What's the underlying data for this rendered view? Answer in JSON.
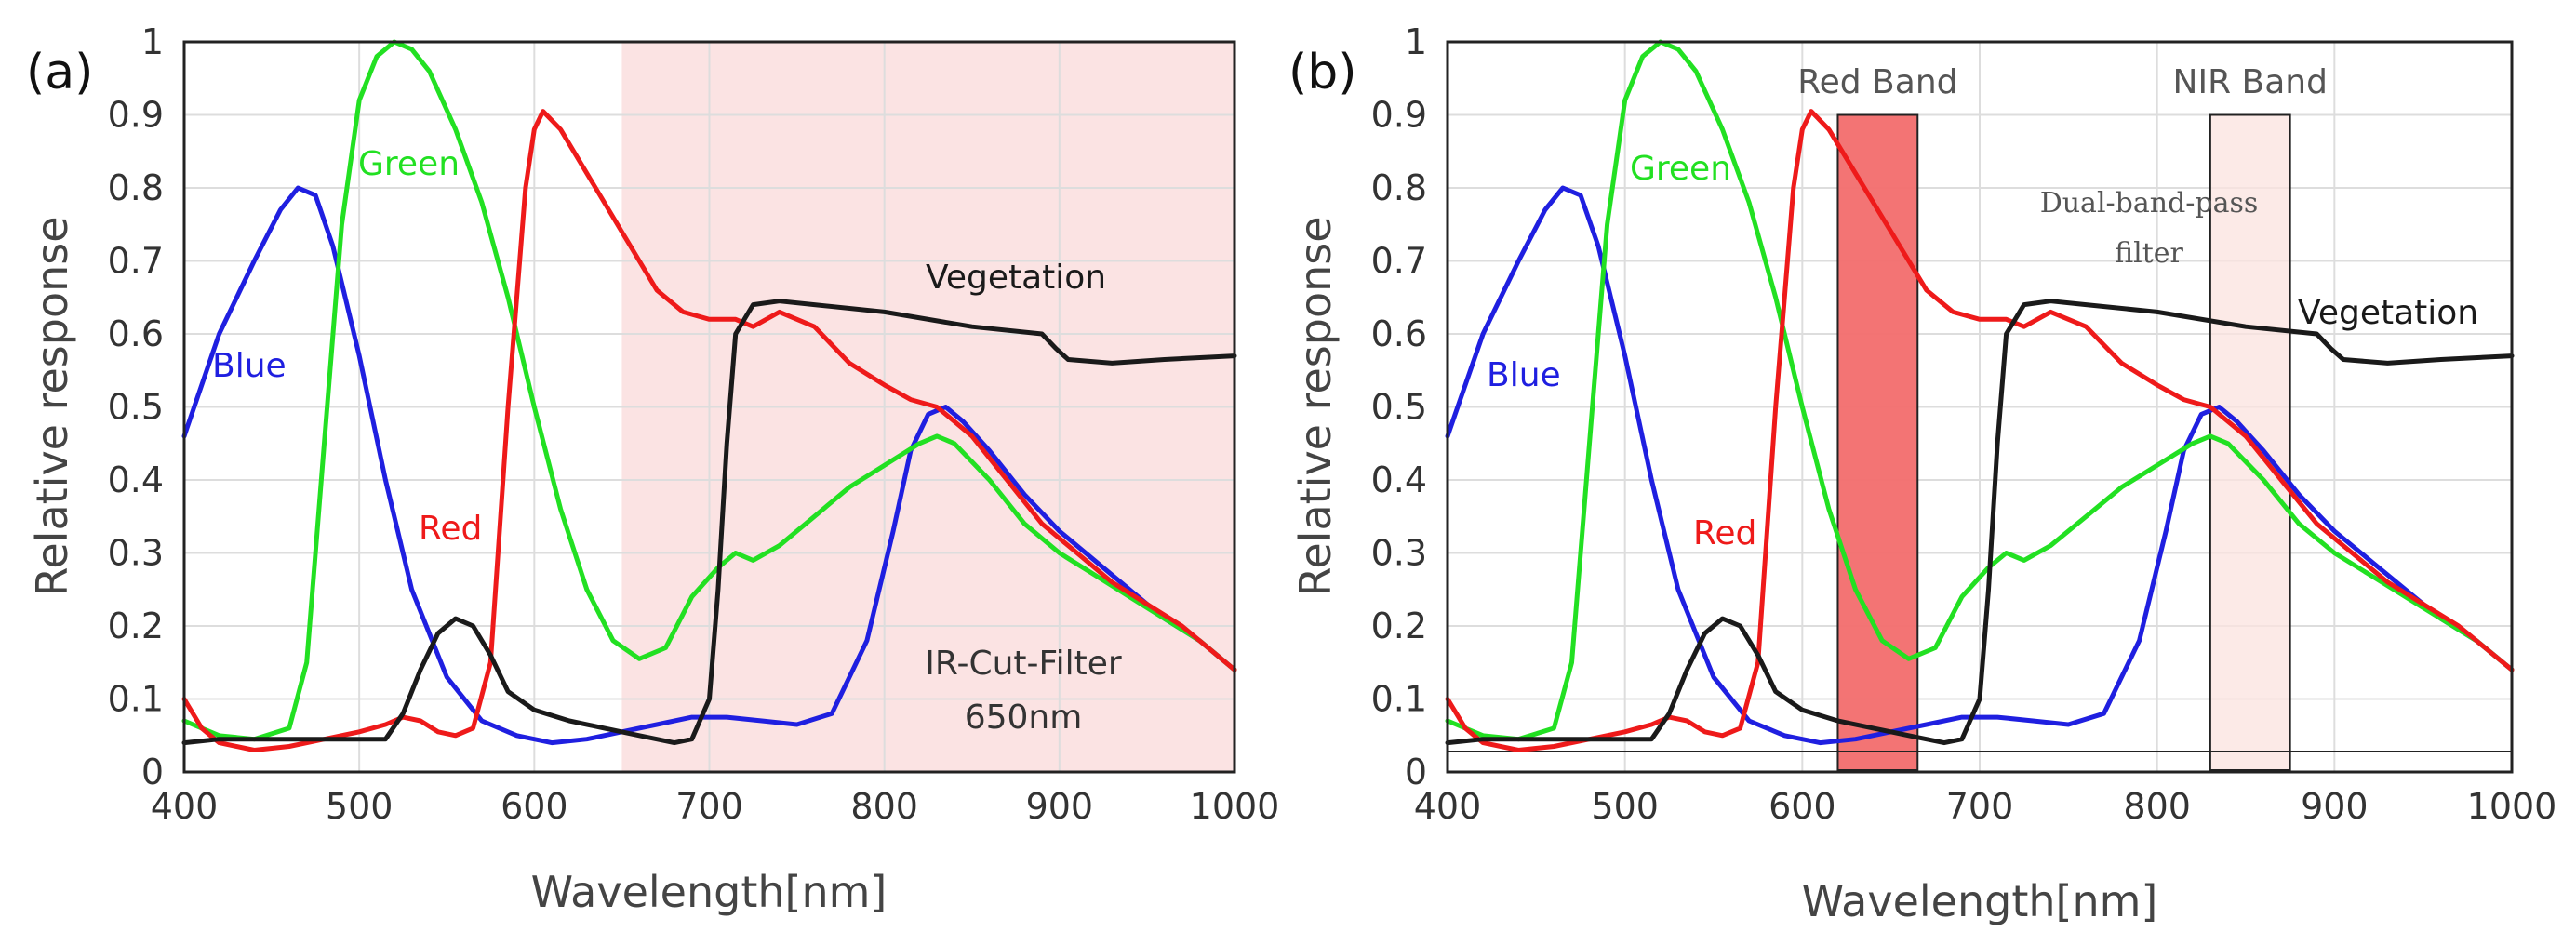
{
  "colors": {
    "blue": "#1f1fe0",
    "green": "#22e022",
    "red": "#ee1a1a",
    "vegetation": "#1a1a1a",
    "ir_shade": "#fbe3e3",
    "red_band": "#f26d6d",
    "nir_band": "#fbe3df"
  },
  "chart_data": [
    {
      "type": "line",
      "panel_label": "(a)",
      "xlabel": "Wavelength[nm]",
      "ylabel": "Relative response",
      "xlim": [
        400,
        1000
      ],
      "ylim": [
        0,
        1
      ],
      "xticks": [
        "400",
        "500",
        "600",
        "700",
        "800",
        "900",
        "1000"
      ],
      "yticks": [
        "0",
        "0.1",
        "0.2",
        "0.3",
        "0.4",
        "0.5",
        "0.6",
        "0.7",
        "0.8",
        "0.9",
        "1"
      ],
      "grid": true,
      "shaded_region": {
        "label_line1": "IR-Cut-Filter",
        "label_line2": "650nm",
        "from": 650,
        "to": 1000
      },
      "series": [
        {
          "name": "Blue",
          "color_key": "blue",
          "x": [
            400,
            420,
            440,
            455,
            465,
            475,
            485,
            500,
            515,
            530,
            550,
            570,
            590,
            610,
            630,
            650,
            670,
            690,
            710,
            730,
            750,
            770,
            790,
            805,
            815,
            825,
            835,
            845,
            860,
            880,
            900,
            920,
            940,
            960,
            980,
            1000
          ],
          "y": [
            0.46,
            0.6,
            0.7,
            0.77,
            0.8,
            0.79,
            0.72,
            0.57,
            0.4,
            0.25,
            0.13,
            0.07,
            0.05,
            0.04,
            0.045,
            0.055,
            0.065,
            0.075,
            0.075,
            0.07,
            0.065,
            0.08,
            0.18,
            0.33,
            0.44,
            0.49,
            0.5,
            0.48,
            0.44,
            0.38,
            0.33,
            0.29,
            0.25,
            0.21,
            0.18,
            0.14
          ]
        },
        {
          "name": "Green",
          "color_key": "green",
          "x": [
            400,
            420,
            440,
            460,
            470,
            480,
            490,
            500,
            510,
            520,
            530,
            540,
            555,
            570,
            585,
            600,
            615,
            630,
            645,
            660,
            675,
            690,
            705,
            715,
            725,
            740,
            760,
            780,
            800,
            820,
            830,
            840,
            860,
            880,
            900,
            920,
            940,
            960,
            980,
            1000
          ],
          "y": [
            0.07,
            0.05,
            0.045,
            0.06,
            0.15,
            0.45,
            0.75,
            0.92,
            0.98,
            1.0,
            0.99,
            0.96,
            0.88,
            0.78,
            0.65,
            0.5,
            0.36,
            0.25,
            0.18,
            0.155,
            0.17,
            0.24,
            0.28,
            0.3,
            0.29,
            0.31,
            0.35,
            0.39,
            0.42,
            0.45,
            0.46,
            0.45,
            0.4,
            0.34,
            0.3,
            0.27,
            0.24,
            0.21,
            0.18,
            0.14
          ]
        },
        {
          "name": "Red",
          "color_key": "red",
          "x": [
            400,
            410,
            420,
            440,
            460,
            480,
            500,
            515,
            525,
            535,
            545,
            555,
            565,
            575,
            585,
            595,
            600,
            605,
            615,
            630,
            650,
            670,
            685,
            700,
            715,
            725,
            740,
            760,
            780,
            800,
            815,
            830,
            850,
            870,
            890,
            910,
            930,
            950,
            970,
            1000
          ],
          "y": [
            0.1,
            0.06,
            0.04,
            0.03,
            0.035,
            0.045,
            0.055,
            0.065,
            0.075,
            0.07,
            0.055,
            0.05,
            0.06,
            0.15,
            0.5,
            0.8,
            0.88,
            0.905,
            0.88,
            0.82,
            0.74,
            0.66,
            0.63,
            0.62,
            0.62,
            0.61,
            0.63,
            0.61,
            0.56,
            0.53,
            0.51,
            0.5,
            0.46,
            0.4,
            0.34,
            0.3,
            0.26,
            0.23,
            0.2,
            0.14
          ]
        },
        {
          "name": "Vegetation",
          "color_key": "vegetation",
          "x": [
            400,
            420,
            440,
            460,
            480,
            500,
            515,
            525,
            535,
            545,
            555,
            565,
            575,
            585,
            600,
            620,
            640,
            660,
            680,
            690,
            700,
            705,
            710,
            715,
            725,
            740,
            760,
            800,
            850,
            890,
            898,
            905,
            930,
            960,
            1000
          ],
          "y": [
            0.04,
            0.045,
            0.045,
            0.045,
            0.045,
            0.045,
            0.045,
            0.08,
            0.14,
            0.19,
            0.21,
            0.2,
            0.16,
            0.11,
            0.085,
            0.07,
            0.06,
            0.05,
            0.04,
            0.045,
            0.1,
            0.25,
            0.45,
            0.6,
            0.64,
            0.645,
            0.64,
            0.63,
            0.61,
            0.6,
            0.58,
            0.565,
            0.56,
            0.565,
            0.57
          ]
        }
      ],
      "curve_labels": [
        "Blue",
        "Green",
        "Red",
        "Vegetation"
      ]
    },
    {
      "type": "line",
      "panel_label": "(b)",
      "xlabel": "Wavelength[nm]",
      "ylabel": "Relative response",
      "xlim": [
        400,
        1000
      ],
      "ylim": [
        0,
        1
      ],
      "xticks": [
        "400",
        "500",
        "600",
        "700",
        "800",
        "900",
        "1000"
      ],
      "yticks": [
        "0",
        "0.1",
        "0.2",
        "0.3",
        "0.4",
        "0.5",
        "0.6",
        "0.7",
        "0.8",
        "0.9",
        "1"
      ],
      "grid": true,
      "bands": [
        {
          "label": "Red Band",
          "from": 620,
          "to": 665,
          "height": 0.9,
          "color_key": "red_band"
        },
        {
          "label": "NIR Band",
          "from": 830,
          "to": 875,
          "height": 0.9,
          "color_key": "nir_band"
        }
      ],
      "filter_annotation": {
        "line1": "Dual-band-pass",
        "line2": "filter"
      },
      "curve_labels": [
        "Blue",
        "Green",
        "Red",
        "Vegetation"
      ],
      "series_same_as_panel_a": true
    }
  ]
}
